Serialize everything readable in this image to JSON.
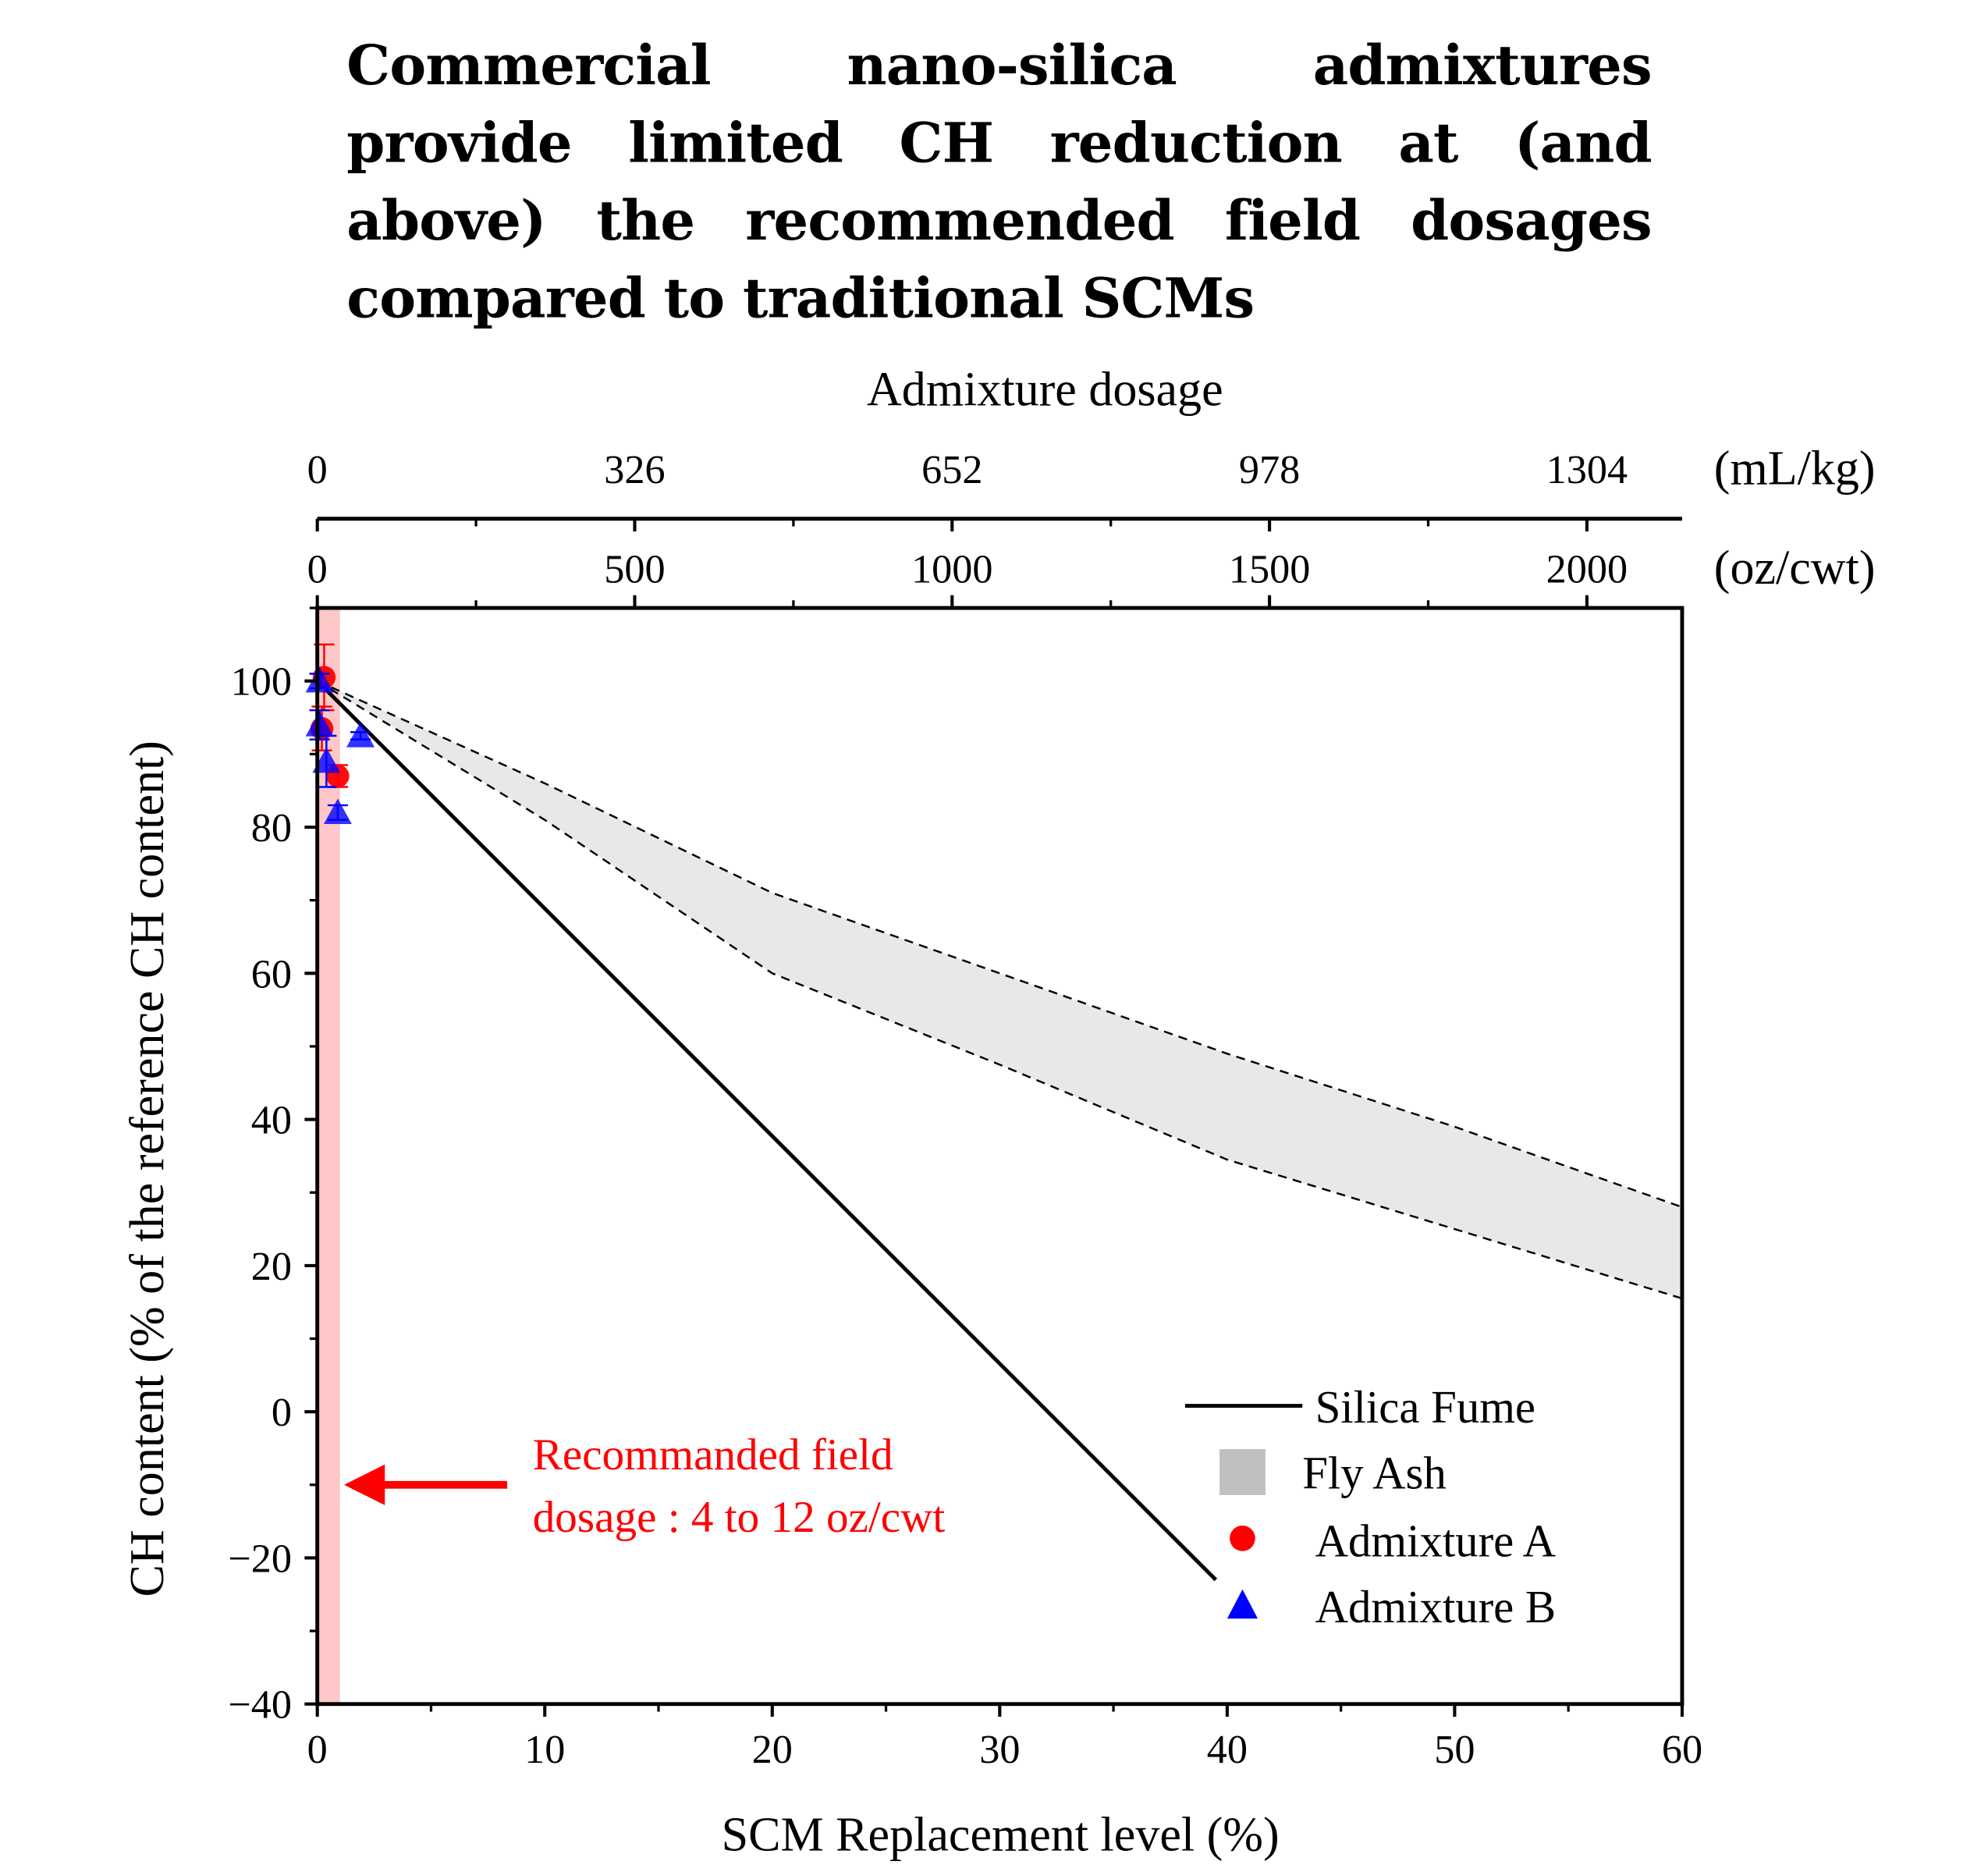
{
  "chart_data": {
    "type": "line",
    "title": "Commercial nano-silica admixtures provide limited CH reduction at (and above) the recommended field dosages compared to traditional SCMs",
    "xlabel": "SCM Replacement level (%)",
    "ylabel": "CH content (% of the reference CH content)",
    "xlim": [
      0,
      60
    ],
    "ylim": [
      -40,
      110
    ],
    "xticks": [
      0,
      10,
      20,
      30,
      40,
      50,
      60
    ],
    "yticks": [
      -40,
      -20,
      0,
      20,
      40,
      60,
      80,
      100
    ],
    "ytick_labels": [
      "−40",
      "−20",
      "0",
      "20",
      "40",
      "60",
      "80",
      "100"
    ],
    "top_axis": {
      "label": "Admixture dosage",
      "range_oz_cwt": [
        0,
        2150
      ],
      "oz_ticks": [
        0,
        500,
        1000,
        1500,
        2000
      ],
      "oz_unit": "(oz/cwt)",
      "ml_tick_labels": [
        "0",
        "326",
        "652",
        "978",
        "1304"
      ],
      "ml_unit": "(mL/kg)"
    },
    "grid": false,
    "legend_placement": "bottom-right",
    "series": [
      {
        "name": "Silica Fume",
        "kind": "line",
        "color": "#000000",
        "x": [
          0,
          39.5
        ],
        "y": [
          100,
          -23
        ]
      },
      {
        "name": "Fly Ash",
        "kind": "band",
        "color": "#c0c0c0",
        "upper": {
          "x": [
            0,
            10,
            20,
            30,
            40,
            50,
            60
          ],
          "y": [
            100,
            86,
            71,
            60,
            49,
            39,
            28
          ]
        },
        "lower": {
          "x": [
            0,
            10,
            20,
            30,
            40,
            50,
            60
          ],
          "y": [
            100,
            81,
            60,
            47.5,
            34.5,
            25,
            15.5
          ]
        }
      },
      {
        "name": "Admixture A",
        "kind": "scatter",
        "marker": "circle",
        "color": "#ff0000",
        "x": [
          0.3,
          0.2,
          0.9
        ],
        "y": [
          100.5,
          93.5,
          87
        ],
        "yerr": [
          4.5,
          3,
          1.5
        ]
      },
      {
        "name": "Admixture B",
        "kind": "scatter",
        "marker": "triangle",
        "color": "#0000ff",
        "x": [
          0.1,
          0.1,
          0.4,
          0.9,
          1.9
        ],
        "y": [
          100,
          94,
          89,
          82,
          92.5
        ],
        "yerr": [
          1,
          2,
          3.5,
          1,
          0.5
        ]
      }
    ],
    "annotation": {
      "lines": [
        "Recommanded field",
        "dosage : 4 to 12 oz/cwt"
      ],
      "color": "#ff0000",
      "arrow_y": -10,
      "band_x": [
        0,
        1
      ],
      "band_color": "#ffc8c8"
    }
  }
}
